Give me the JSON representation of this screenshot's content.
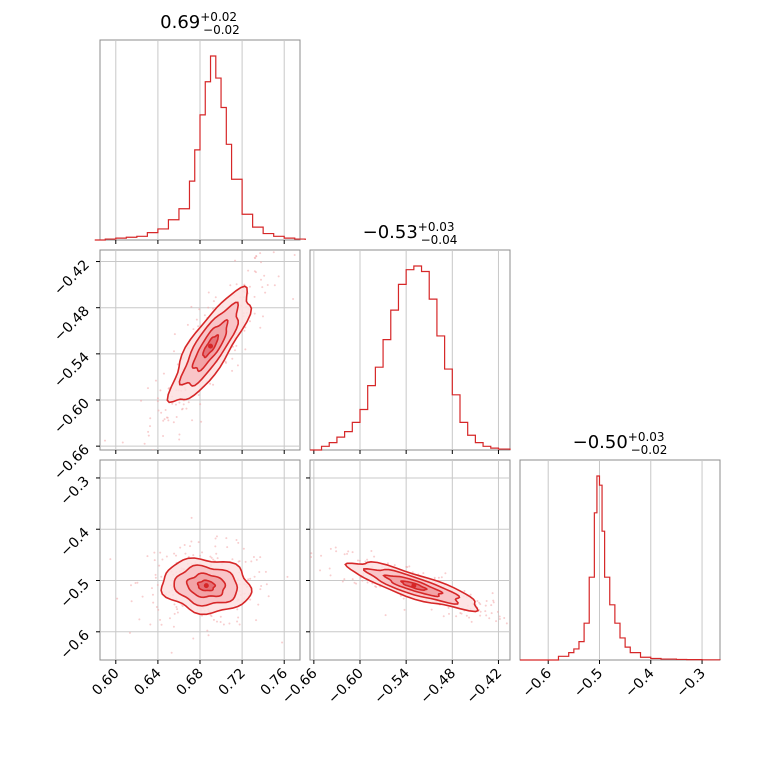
{
  "chart_data": {
    "type": "corner",
    "color": "#d62728",
    "fill_color": "#f4b6b8",
    "grid": true,
    "panels": [
      {
        "id": "hist-0",
        "kind": "histogram",
        "title": {
          "median": "0.69",
          "plus": "+0.02",
          "minus": "−0.02"
        },
        "xlim": [
          0.585,
          0.775
        ],
        "x": [
          0.58,
          0.59,
          0.6,
          0.61,
          0.62,
          0.63,
          0.64,
          0.65,
          0.66,
          0.67,
          0.675,
          0.68,
          0.685,
          0.69,
          0.695,
          0.7,
          0.705,
          0.71,
          0.72,
          0.73,
          0.74,
          0.75,
          0.76,
          0.77,
          0.78
        ],
        "y": [
          0.0,
          0.005,
          0.01,
          0.015,
          0.02,
          0.04,
          0.06,
          0.11,
          0.17,
          0.32,
          0.49,
          0.68,
          0.86,
          1.0,
          0.88,
          0.72,
          0.52,
          0.33,
          0.14,
          0.07,
          0.035,
          0.02,
          0.01,
          0.005,
          0.0
        ]
      },
      {
        "id": "hist-1",
        "kind": "histogram",
        "title": {
          "median": "−0.53",
          "plus": "+0.03",
          "minus": "−0.04"
        },
        "xlim": [
          -0.665,
          -0.405
        ],
        "x": [
          -0.665,
          -0.65,
          -0.64,
          -0.63,
          -0.62,
          -0.61,
          -0.6,
          -0.59,
          -0.58,
          -0.57,
          -0.56,
          -0.55,
          -0.54,
          -0.53,
          -0.52,
          -0.51,
          -0.5,
          -0.49,
          -0.48,
          -0.47,
          -0.46,
          -0.45,
          -0.44,
          -0.43,
          -0.42,
          -0.405
        ],
        "y": [
          0.0,
          0.02,
          0.04,
          0.07,
          0.1,
          0.15,
          0.22,
          0.35,
          0.45,
          0.6,
          0.76,
          0.9,
          0.98,
          1.0,
          0.97,
          0.82,
          0.62,
          0.44,
          0.3,
          0.15,
          0.08,
          0.04,
          0.02,
          0.01,
          0.005,
          0.0
        ]
      },
      {
        "id": "hist-2",
        "kind": "histogram",
        "title": {
          "median": "−0.50",
          "plus": "+0.03",
          "minus": "−0.02"
        },
        "xlim": [
          -0.655,
          -0.265
        ],
        "x": [
          -0.655,
          -0.6,
          -0.58,
          -0.56,
          -0.55,
          -0.54,
          -0.53,
          -0.52,
          -0.51,
          -0.505,
          -0.5,
          -0.495,
          -0.49,
          -0.48,
          -0.47,
          -0.46,
          -0.45,
          -0.44,
          -0.42,
          -0.4,
          -0.38,
          -0.35,
          -0.33,
          -0.3,
          -0.265
        ],
        "y": [
          0.0,
          0.0,
          0.02,
          0.04,
          0.06,
          0.1,
          0.2,
          0.45,
          0.8,
          1.0,
          0.95,
          0.7,
          0.45,
          0.3,
          0.2,
          0.12,
          0.07,
          0.04,
          0.015,
          0.008,
          0.005,
          0.003,
          0.002,
          0.001,
          0.0
        ]
      },
      {
        "id": "joint-1-0",
        "kind": "joint",
        "xlim": [
          0.585,
          0.775
        ],
        "ylim": [
          -0.665,
          -0.405
        ],
        "mean": [
          0.69,
          -0.53
        ],
        "sd": [
          0.018,
          0.035
        ],
        "rho": 0.82
      },
      {
        "id": "joint-2-0",
        "kind": "joint",
        "xlim": [
          0.585,
          0.775
        ],
        "ylim": [
          -0.655,
          -0.265
        ],
        "mean": [
          0.686,
          -0.51
        ],
        "sd": [
          0.02,
          0.025
        ],
        "rho": -0.1
      },
      {
        "id": "joint-2-1",
        "kind": "joint",
        "xlim": [
          -0.665,
          -0.405
        ],
        "ylim": [
          -0.655,
          -0.265
        ],
        "mean": [
          -0.53,
          -0.51
        ],
        "sd": [
          0.04,
          0.022
        ],
        "rho": -0.85
      }
    ],
    "axes": {
      "p0": {
        "ticks": [
          0.6,
          0.64,
          0.68,
          0.72,
          0.76
        ],
        "tick_labels": [
          "0.60",
          "0.64",
          "0.68",
          "0.72",
          "0.76"
        ]
      },
      "p1": {
        "ticks": [
          -0.66,
          -0.6,
          -0.54,
          -0.48,
          -0.42
        ],
        "tick_labels": [
          "−0.66",
          "−0.60",
          "−0.54",
          "−0.48",
          "−0.42"
        ]
      },
      "p2": {
        "ticks": [
          -0.6,
          -0.5,
          -0.4,
          -0.3
        ],
        "tick_labels": [
          "−0.6",
          "−0.5",
          "−0.4",
          "−0.3"
        ]
      }
    }
  }
}
